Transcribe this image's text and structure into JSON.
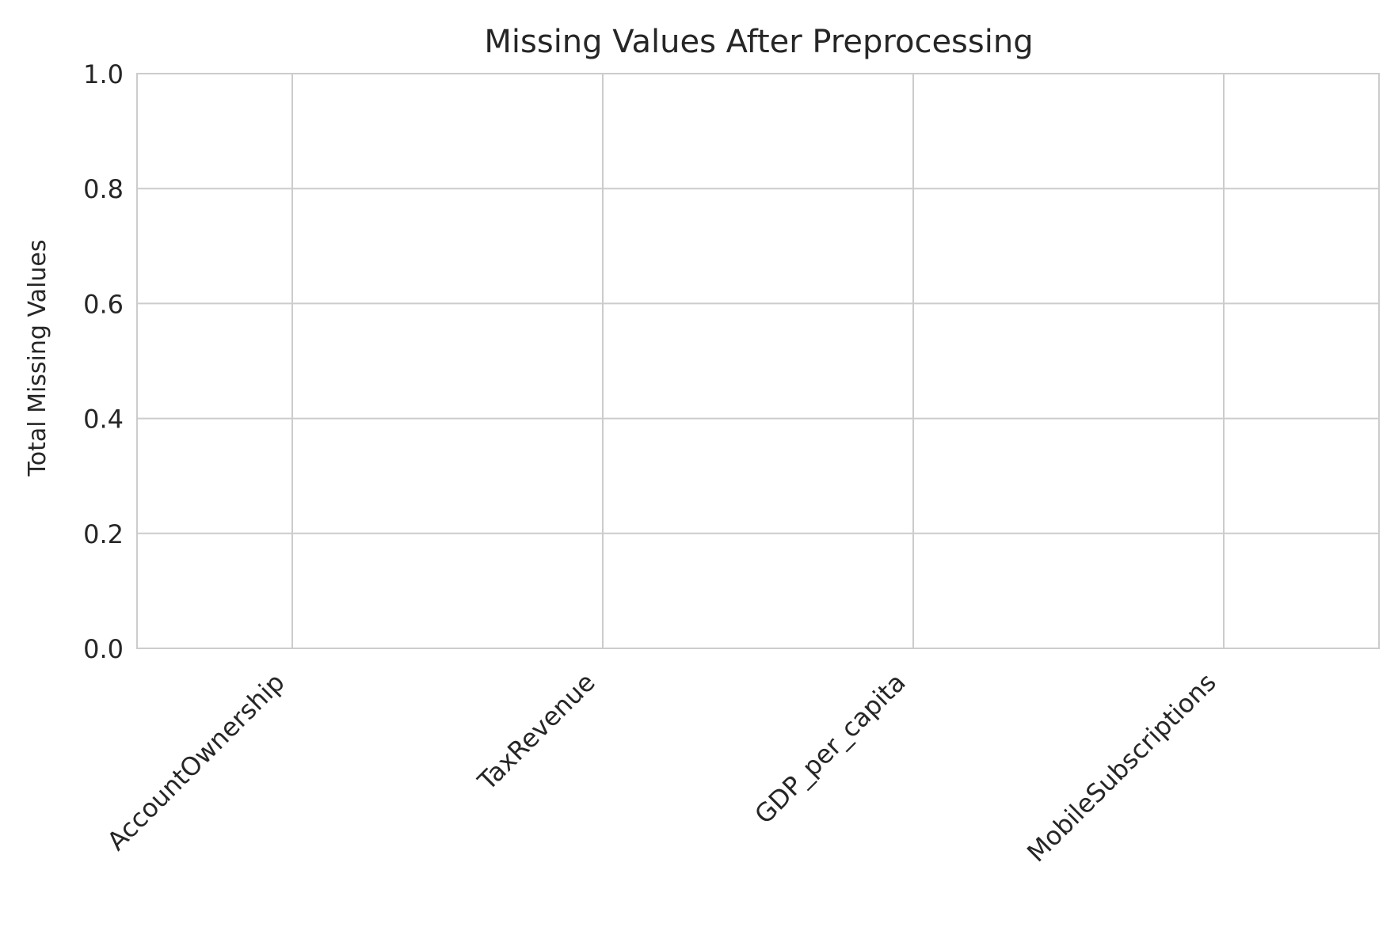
{
  "chart_data": {
    "type": "bar",
    "title": "Missing Values After Preprocessing",
    "xlabel": "",
    "ylabel": "Total Missing Values",
    "categories": [
      "AccountOwnership",
      "TaxRevenue",
      "GDP_per_capita",
      "MobileSubscriptions"
    ],
    "values": [
      0,
      0,
      0,
      0
    ],
    "ylim": [
      0,
      1.0
    ],
    "yticks": [
      "0.0",
      "0.2",
      "0.4",
      "0.6",
      "0.8",
      "1.0"
    ],
    "grid": true,
    "colors": {
      "grid": "#cccccc",
      "spine": "#cccccc",
      "text": "#262626",
      "bar": "#4c72b0"
    }
  }
}
